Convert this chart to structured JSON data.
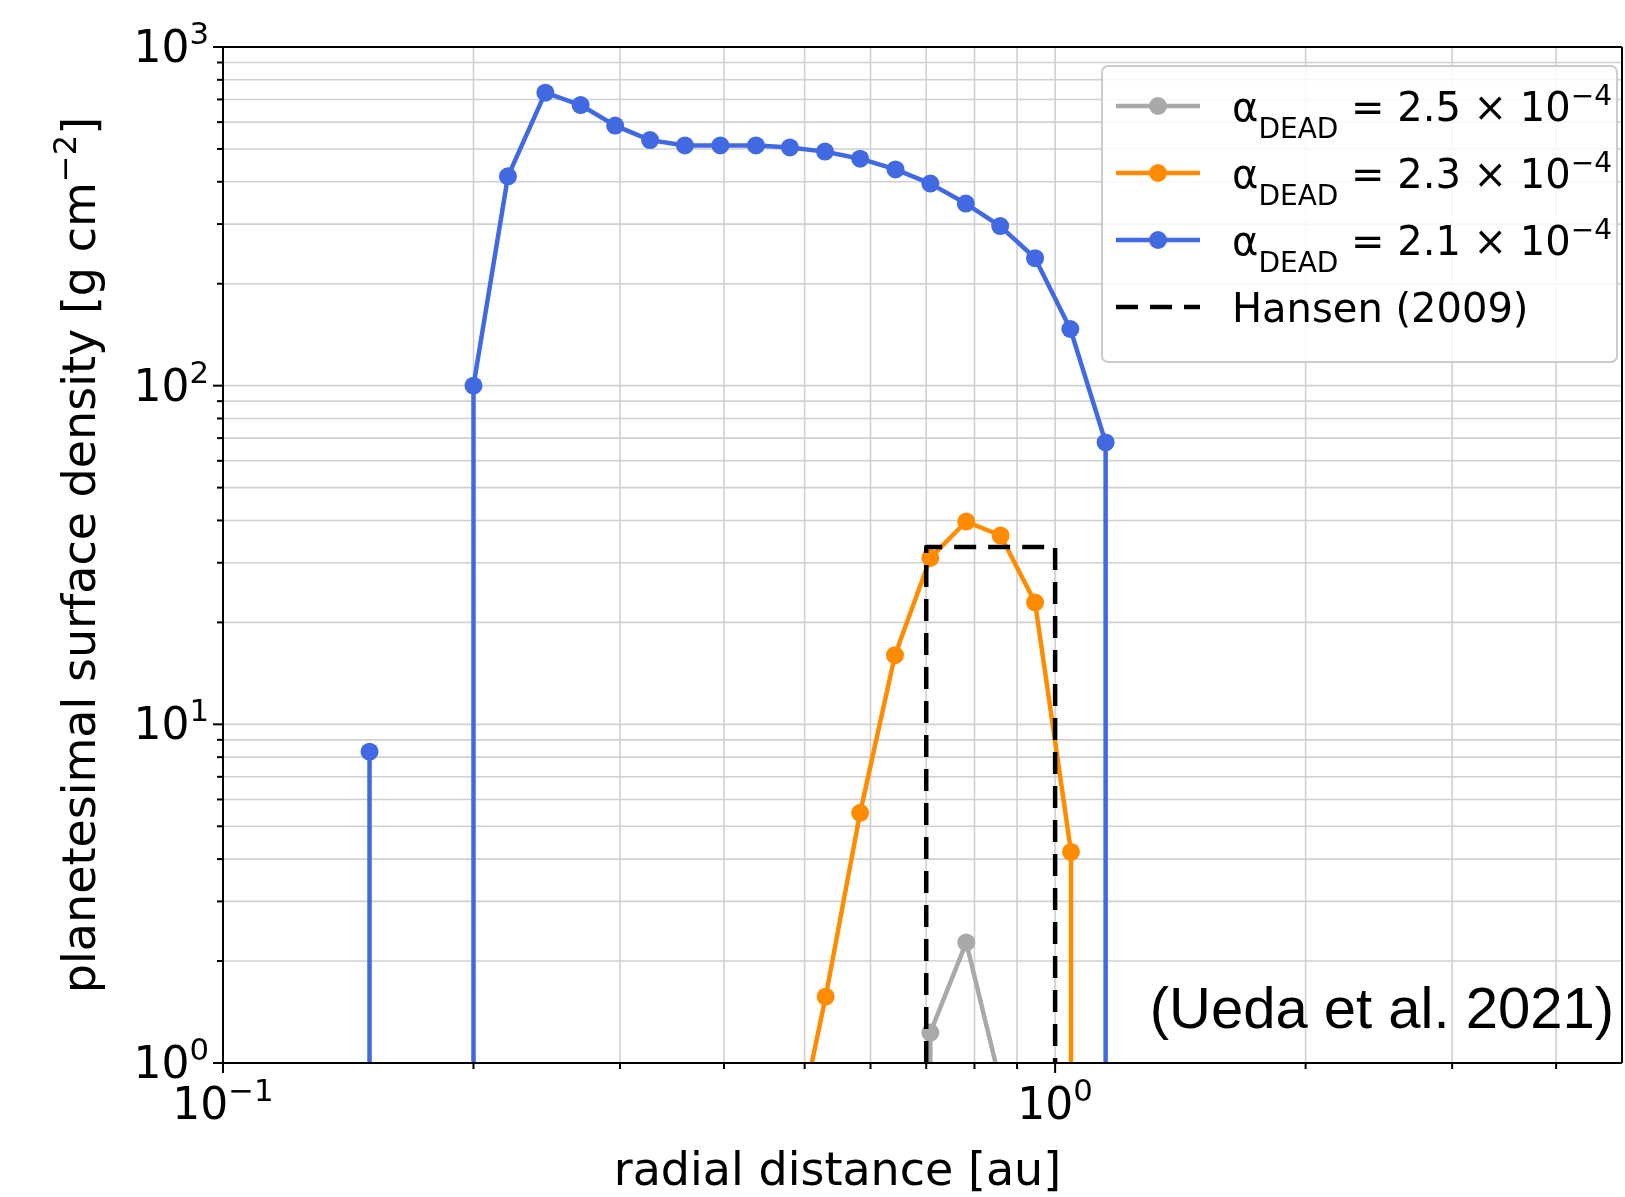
{
  "chart_data": {
    "type": "line",
    "xlabel": "radial distance [au]",
    "ylabel": "planetesimal surface density [g cm$^{−2}$]",
    "log": "xy",
    "grid": true,
    "legend": "top right",
    "marker": "circle",
    "xlim": [
      0.1,
      4.8
    ],
    "ylim": [
      1,
      1000
    ],
    "xticks": [
      {
        "value": 0.1,
        "label": "10$^{−1}$"
      },
      {
        "value": 0.2,
        "label": null
      },
      {
        "value": 0.3,
        "label": null
      },
      {
        "value": 0.4,
        "label": null
      },
      {
        "value": 0.5,
        "label": null
      },
      {
        "value": 0.6,
        "label": null
      },
      {
        "value": 0.7,
        "label": null
      },
      {
        "value": 0.8,
        "label": null
      },
      {
        "value": 0.9,
        "label": null
      },
      {
        "value": 1,
        "label": "10$^{0}$"
      },
      {
        "value": 2,
        "label": null
      },
      {
        "value": 3,
        "label": null
      },
      {
        "value": 4,
        "label": null
      }
    ],
    "yticks": [
      {
        "value": 1,
        "label": "10$^{0}$"
      },
      {
        "value": 2,
        "label": null
      },
      {
        "value": 3,
        "label": null
      },
      {
        "value": 4,
        "label": null
      },
      {
        "value": 5,
        "label": null
      },
      {
        "value": 6,
        "label": null
      },
      {
        "value": 7,
        "label": null
      },
      {
        "value": 8,
        "label": null
      },
      {
        "value": 9,
        "label": null
      },
      {
        "value": 10,
        "label": "10$^{1}$"
      },
      {
        "value": 20,
        "label": null
      },
      {
        "value": 30,
        "label": null
      },
      {
        "value": 40,
        "label": null
      },
      {
        "value": 50,
        "label": null
      },
      {
        "value": 60,
        "label": null
      },
      {
        "value": 70,
        "label": null
      },
      {
        "value": 80,
        "label": null
      },
      {
        "value": 90,
        "label": null
      },
      {
        "value": 100,
        "label": "10$^{2}$"
      },
      {
        "value": 200,
        "label": null
      },
      {
        "value": 300,
        "label": null
      },
      {
        "value": 400,
        "label": null
      },
      {
        "value": 500,
        "label": null
      },
      {
        "value": 600,
        "label": null
      },
      {
        "value": 700,
        "label": null
      },
      {
        "value": 800,
        "label": null
      },
      {
        "value": 900,
        "label": null
      },
      {
        "value": 1000,
        "label": "10$^{3}$"
      }
    ],
    "series": [
      {
        "name": "α$_{DEAD}$ = 2.5 × 10$^{−4}$",
        "color": "#a9a9a9",
        "x": [
          0.708,
          0.708,
          0.782,
          0.848
        ],
        "values": [
          1,
          1.23,
          2.27,
          1
        ]
      },
      {
        "name": "α$_{DEAD}$ = 2.3 × 10$^{−4}$",
        "color": "#ff8c00",
        "x": [
          0.51,
          0.53,
          0.583,
          0.642,
          0.708,
          0.782,
          0.86,
          0.946,
          1.045,
          1.045
        ],
        "values": [
          1,
          1.57,
          5.48,
          16,
          31,
          39.7,
          36.1,
          22.9,
          4.2,
          1
        ]
      },
      {
        "name": "α$_{DEAD}$ = 2.1 × 10$^{−4}$",
        "color": "#4169e1",
        "x": [
          0.15,
          0.15,
          0.175,
          0.2,
          0.2,
          0.22,
          0.244,
          0.269,
          0.296,
          0.326,
          0.359,
          0.396,
          0.437,
          0.48,
          0.529,
          0.583,
          0.643,
          0.708,
          0.781,
          0.859,
          0.946,
          1.043,
          1.15,
          1.15
        ],
        "values": [
          1,
          8.3,
          null,
          1,
          100,
          415,
          733,
          674,
          586,
          531,
          512,
          512,
          512,
          505,
          491,
          468,
          435,
          395,
          345,
          296,
          238,
          147,
          68,
          1
        ]
      },
      {
        "name": "Hansen (2009)",
        "color": "#000000",
        "marker": "none",
        "line_style": "dashed",
        "x": [
          0.7,
          0.7,
          1,
          1
        ],
        "values": [
          1,
          33.4,
          33.4,
          1
        ]
      }
    ],
    "annotations": [
      "(Ueda et al. 2021)"
    ]
  }
}
